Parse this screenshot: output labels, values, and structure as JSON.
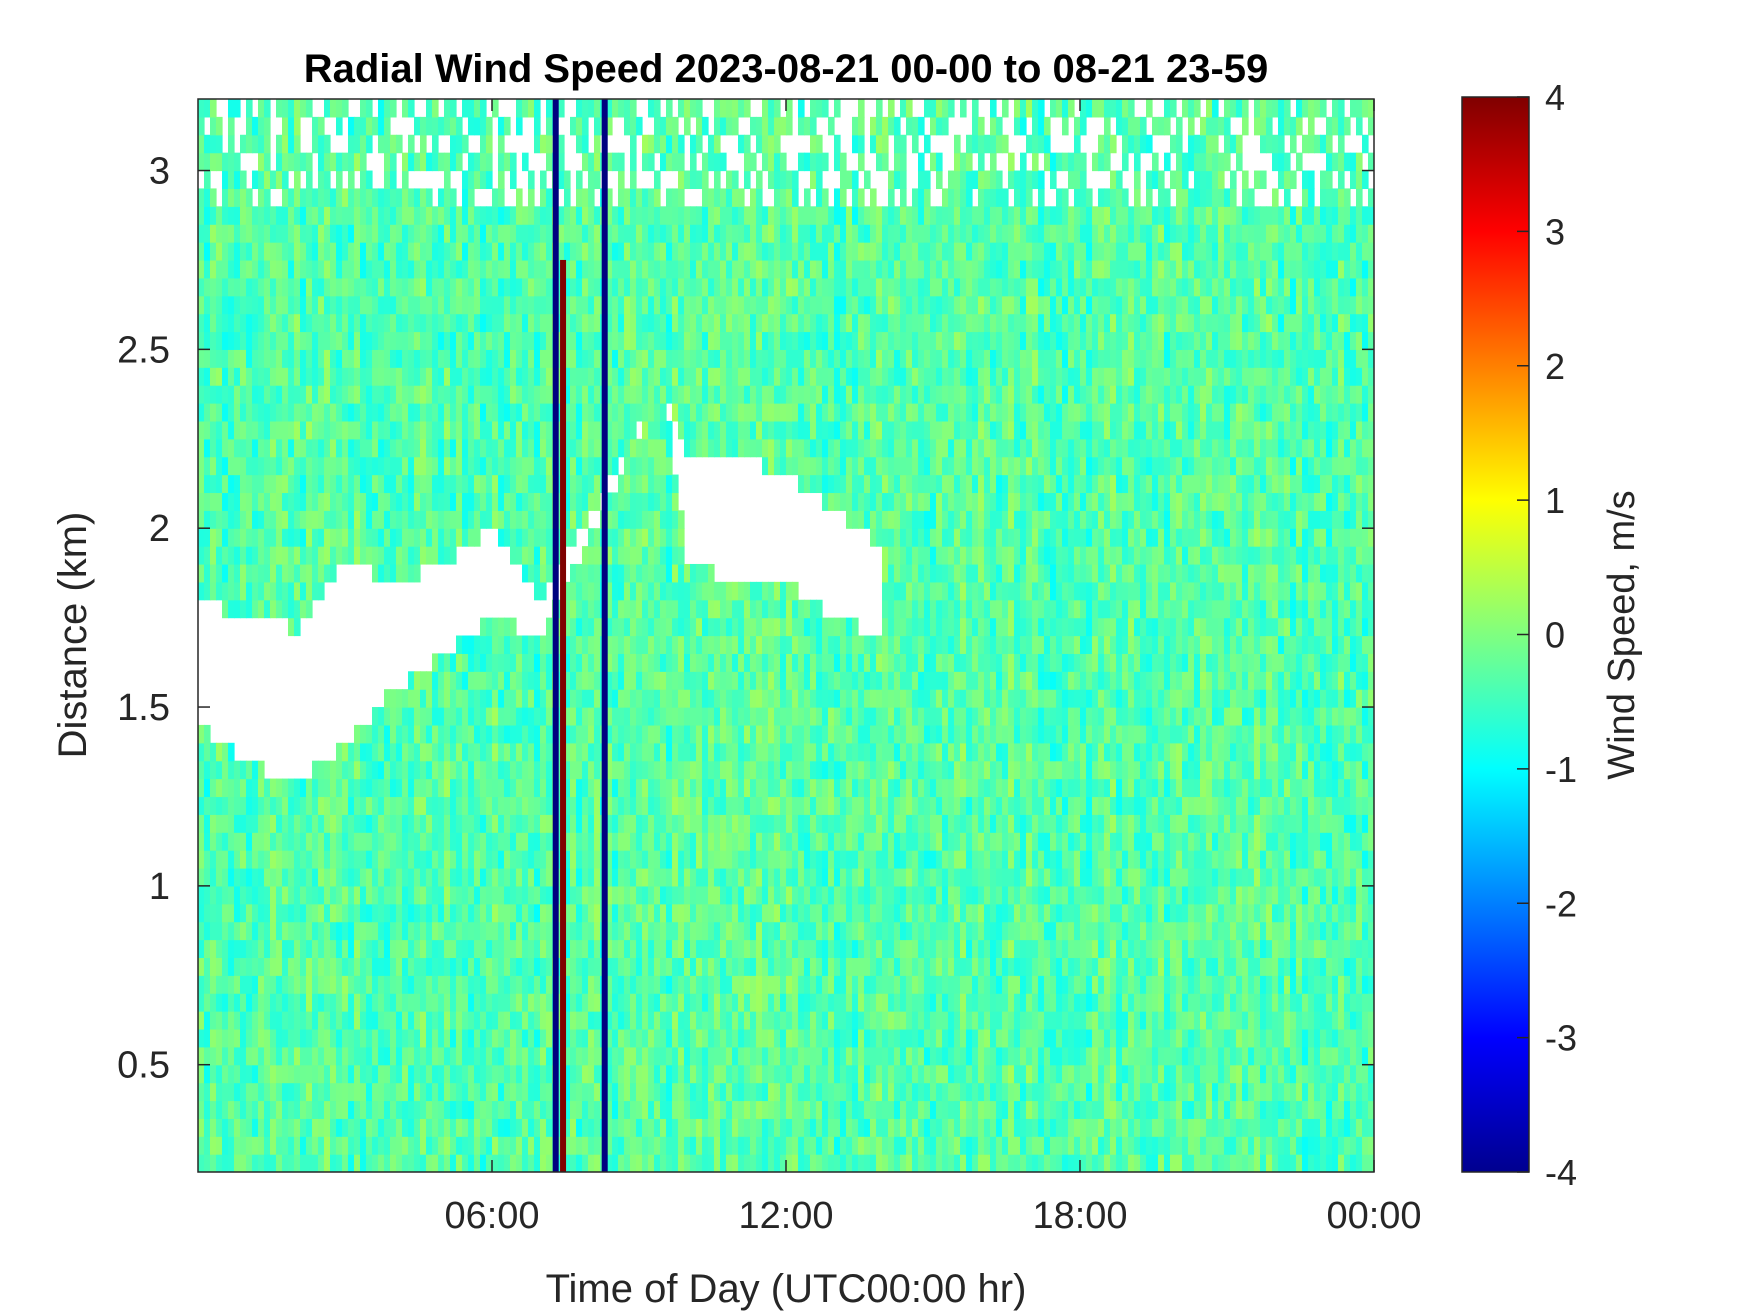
{
  "chart_data": {
    "type": "heatmap",
    "title": "Radial Wind Speed 2023-08-21 00-00 to 08-21 23-59",
    "xlabel": "Time of Day (UTC00:00 hr)",
    "ylabel": "Distance (km)",
    "colorbar_label": "Wind Speed, m/s",
    "colormap": "jet",
    "xlim_hours": [
      0,
      24
    ],
    "ylim_km": [
      0.2,
      3.2
    ],
    "clim": [
      -4,
      4
    ],
    "x_ticks": [
      {
        "hour": 6,
        "label": "06:00"
      },
      {
        "hour": 12,
        "label": "12:00"
      },
      {
        "hour": 18,
        "label": "18:00"
      },
      {
        "hour": 24,
        "label": "00:00"
      }
    ],
    "y_ticks": [
      {
        "value": 0.5,
        "label": "0.5"
      },
      {
        "value": 1,
        "label": "1"
      },
      {
        "value": 1.5,
        "label": "1.5"
      },
      {
        "value": 2,
        "label": "2"
      },
      {
        "value": 2.5,
        "label": "2.5"
      },
      {
        "value": 3,
        "label": "3"
      }
    ],
    "colorbar_ticks": [
      {
        "value": 4,
        "label": "4"
      },
      {
        "value": 3,
        "label": "3"
      },
      {
        "value": 2,
        "label": "2"
      },
      {
        "value": 1,
        "label": "1"
      },
      {
        "value": 0,
        "label": "0"
      },
      {
        "value": -1,
        "label": "-1"
      },
      {
        "value": -2,
        "label": "-2"
      },
      {
        "value": -3,
        "label": "-3"
      },
      {
        "value": -4,
        "label": "-4"
      }
    ],
    "background_wind_speed_range_ms": [
      -1.2,
      0.5
    ],
    "data_gap_boundary_km": [
      {
        "hour": 0.0,
        "lower": 1.45,
        "upper": 1.8
      },
      {
        "hour": 1.0,
        "lower": 1.35,
        "upper": 1.75
      },
      {
        "hour": 2.0,
        "lower": 1.28,
        "upper": 1.72
      },
      {
        "hour": 3.0,
        "lower": 1.4,
        "upper": 1.9
      },
      {
        "hour": 4.0,
        "lower": 1.55,
        "upper": 1.85
      },
      {
        "hour": 5.0,
        "lower": 1.65,
        "upper": 1.9
      },
      {
        "hour": 6.0,
        "lower": 1.75,
        "upper": 2.0
      },
      {
        "hour": 7.0,
        "lower": 1.7,
        "upper": 1.8
      },
      {
        "hour": 9.5,
        "lower": 2.4,
        "upper": 2.4
      },
      {
        "hour": 10.0,
        "lower": 1.9,
        "upper": 2.2
      },
      {
        "hour": 11.0,
        "lower": 1.85,
        "upper": 2.2
      },
      {
        "hour": 12.0,
        "lower": 1.85,
        "upper": 2.15
      },
      {
        "hour": 13.0,
        "lower": 1.75,
        "upper": 2.05
      },
      {
        "hour": 14.0,
        "lower": 1.7,
        "upper": 1.95
      }
    ],
    "vertical_features": [
      {
        "hour": 7.3,
        "value_ms": -4,
        "from_km": 0.2,
        "to_km": 3.2
      },
      {
        "hour": 7.45,
        "value_ms": 4,
        "from_km": 0.2,
        "to_km": 2.75
      },
      {
        "hour": 8.3,
        "value_ms": -4,
        "from_km": 0.2,
        "to_km": 3.2
      }
    ]
  }
}
